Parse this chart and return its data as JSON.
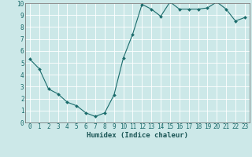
{
  "x": [
    0,
    1,
    2,
    3,
    4,
    5,
    6,
    7,
    8,
    9,
    10,
    11,
    12,
    13,
    14,
    15,
    16,
    17,
    18,
    19,
    20,
    21,
    22,
    23
  ],
  "y": [
    5.3,
    4.5,
    2.8,
    2.4,
    1.7,
    1.4,
    0.8,
    0.5,
    0.8,
    2.3,
    5.4,
    7.4,
    9.9,
    9.5,
    8.9,
    10.1,
    9.5,
    9.5,
    9.5,
    9.6,
    10.1,
    9.5,
    8.5,
    8.8
  ],
  "line_color": "#1a6b6b",
  "marker": "D",
  "marker_size": 2.0,
  "bg_color": "#cce8e8",
  "grid_color": "#ffffff",
  "xlabel": "Humidex (Indice chaleur)",
  "xlim": [
    -0.5,
    23.5
  ],
  "ylim": [
    0,
    10
  ],
  "xtick_labels": [
    "0",
    "1",
    "2",
    "3",
    "4",
    "5",
    "6",
    "7",
    "8",
    "9",
    "10",
    "11",
    "12",
    "13",
    "14",
    "15",
    "16",
    "17",
    "18",
    "19",
    "20",
    "21",
    "22",
    "23"
  ],
  "ytick_labels": [
    "0",
    "1",
    "2",
    "3",
    "4",
    "5",
    "6",
    "7",
    "8",
    "9",
    "10"
  ],
  "font_size": 5.5,
  "xlabel_fontsize": 6.5,
  "linewidth": 0.8
}
